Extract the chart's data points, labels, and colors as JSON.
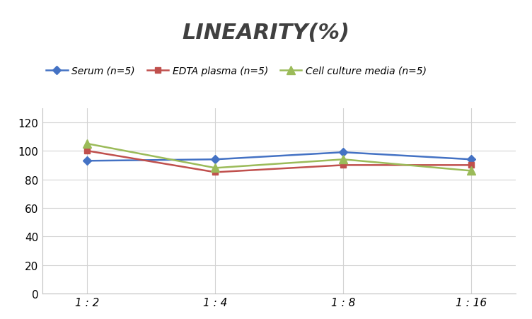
{
  "title": "LINEARITY(%)",
  "x_labels": [
    "1 : 2",
    "1 : 4",
    "1 : 8",
    "1 : 16"
  ],
  "x_positions": [
    0,
    1,
    2,
    3
  ],
  "series": [
    {
      "label": "Serum (n=5)",
      "values": [
        93,
        94,
        99,
        94
      ],
      "color": "#4472C4",
      "marker": "D",
      "marker_size": 6,
      "linewidth": 1.8
    },
    {
      "label": "EDTA plasma (n=5)",
      "values": [
        100,
        85,
        90,
        90
      ],
      "color": "#C0504D",
      "marker": "s",
      "marker_size": 6,
      "linewidth": 1.8
    },
    {
      "label": "Cell culture media (n=5)",
      "values": [
        105,
        88,
        94,
        86
      ],
      "color": "#9BBB59",
      "marker": "^",
      "marker_size": 8,
      "linewidth": 1.8
    }
  ],
  "ylim": [
    0,
    130
  ],
  "yticks": [
    0,
    20,
    40,
    60,
    80,
    100,
    120
  ],
  "background_color": "#ffffff",
  "grid_color": "#d3d3d3",
  "title_fontsize": 22,
  "legend_fontsize": 10,
  "tick_fontsize": 11,
  "title_color": "#404040"
}
